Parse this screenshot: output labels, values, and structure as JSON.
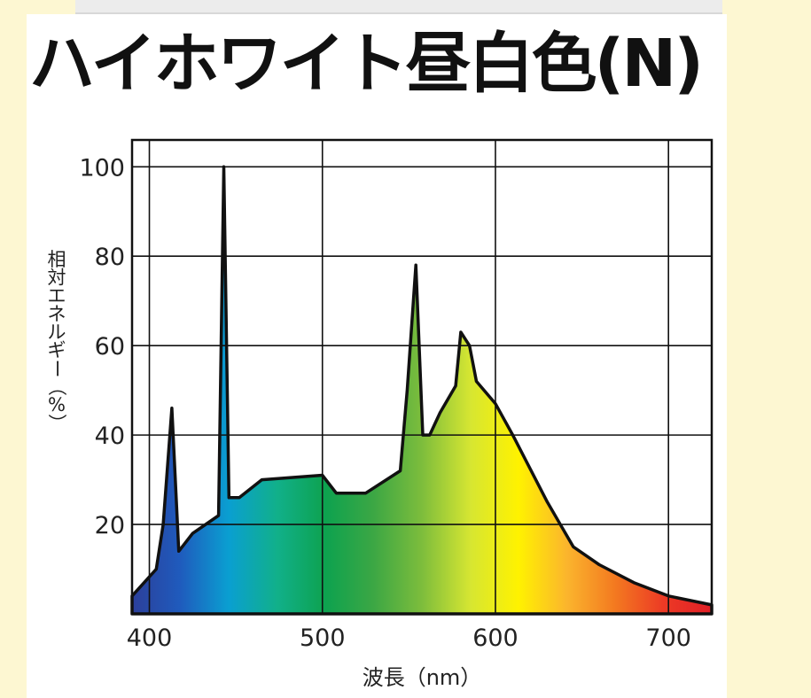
{
  "page": {
    "title": "ハイホワイト昼白色(N)"
  },
  "chart_data": {
    "type": "area",
    "title": "ハイホワイト昼白色(N)",
    "xlabel": "波長（nm）",
    "ylabel": "相対エネルギー（%）",
    "xlim": [
      390,
      725
    ],
    "ylim": [
      0,
      106
    ],
    "x_ticks": [
      400,
      500,
      600,
      700
    ],
    "x_tick_labels": [
      "400",
      "500",
      "600",
      "700"
    ],
    "y_ticks": [
      20,
      40,
      60,
      80,
      100
    ],
    "y_tick_labels": [
      "20",
      "40",
      "60",
      "80",
      "100"
    ],
    "grid": true,
    "fill": "visible-spectrum gradient",
    "x": [
      390,
      404,
      408,
      413,
      417,
      425,
      440,
      443,
      446,
      452,
      465,
      500,
      508,
      525,
      545,
      549,
      554,
      558,
      562,
      568,
      577,
      580,
      585,
      589,
      600,
      610,
      630,
      645,
      660,
      680,
      700,
      725
    ],
    "y": [
      4,
      10,
      20,
      46,
      14,
      18,
      22,
      100,
      26,
      26,
      30,
      31,
      27,
      27,
      32,
      50,
      78,
      40,
      40,
      45,
      51,
      63,
      60,
      52,
      47,
      40,
      25,
      15,
      11,
      7,
      4,
      2
    ]
  },
  "colors": {
    "spectrum_stops": [
      "#2c3f9a",
      "#1f5bbd",
      "#0a9fd1",
      "#11b08a",
      "#0da24f",
      "#3ca744",
      "#7dbd3c",
      "#d6e632",
      "#fff200",
      "#fbb52d",
      "#f37920",
      "#ec3a25",
      "#e21f26"
    ],
    "background": "#fdf7d2",
    "panel": "#ffffff"
  }
}
